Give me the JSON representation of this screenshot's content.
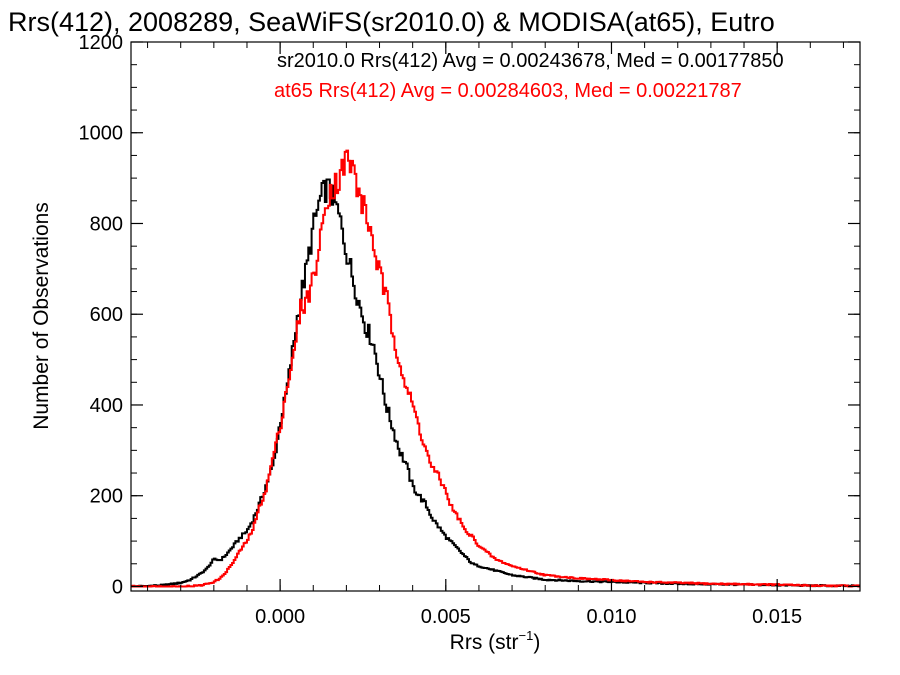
{
  "chart_data": {
    "type": "line",
    "title": "Rrs(412), 2008289, SeaWiFS(sr2010.0) & MODISA(at65), Eutro",
    "xlabel_base": "Rrs (str",
    "xlabel_sup": "−1",
    "xlabel_close": ")",
    "ylabel": "Number of Observations",
    "xlim": [
      -0.0045,
      0.0175
    ],
    "ylim": [
      -10,
      1200
    ],
    "xticks": [
      0.0,
      0.005,
      0.01,
      0.015
    ],
    "xtick_labels": [
      "0.000",
      "0.005",
      "0.010",
      "0.015"
    ],
    "yticks": [
      0,
      200,
      400,
      600,
      800,
      1000,
      1200
    ],
    "ytick_labels": [
      "0",
      "200",
      "400",
      "600",
      "800",
      "1000",
      "1200"
    ],
    "grid": false,
    "legend_placement": "top-right",
    "series": [
      {
        "name": "sr2010.0 Rrs(412) Avg = 0.00243678, Med = 0.00177850",
        "color": "#000000",
        "x": [
          -0.0045,
          -0.004,
          -0.0035,
          -0.003,
          -0.0027,
          -0.0024,
          -0.0022,
          -0.002,
          -0.0018,
          -0.0016,
          -0.0014,
          -0.0012,
          -0.001,
          -0.0008,
          -0.0006,
          -0.0004,
          -0.0002,
          0.0,
          0.0002,
          0.0004,
          0.0006,
          0.0008,
          0.001,
          0.0012,
          0.0014,
          0.0016,
          0.0018,
          0.002,
          0.0022,
          0.0024,
          0.0026,
          0.0028,
          0.003,
          0.0032,
          0.0034,
          0.0036,
          0.0038,
          0.004,
          0.0042,
          0.0044,
          0.0046,
          0.0048,
          0.005,
          0.0052,
          0.0054,
          0.0056,
          0.0058,
          0.006,
          0.0065,
          0.007,
          0.0075,
          0.008,
          0.009,
          0.01,
          0.011,
          0.012,
          0.013,
          0.014,
          0.015,
          0.016,
          0.0175
        ],
        "y": [
          0,
          1,
          3,
          8,
          15,
          28,
          40,
          60,
          58,
          72,
          90,
          108,
          122,
          150,
          185,
          228,
          270,
          360,
          430,
          530,
          630,
          700,
          790,
          850,
          880,
          860,
          810,
          740,
          680,
          620,
          570,
          540,
          470,
          400,
          350,
          300,
          270,
          220,
          200,
          180,
          150,
          130,
          110,
          95,
          80,
          65,
          50,
          45,
          35,
          25,
          20,
          15,
          12,
          10,
          8,
          6,
          5,
          4,
          3,
          2,
          1
        ]
      },
      {
        "name": "at65 Rrs(412) Avg = 0.00284603, Med = 0.00221787",
        "color": "#ff0000",
        "x": [
          -0.0045,
          -0.003,
          -0.0024,
          -0.0022,
          -0.002,
          -0.0018,
          -0.0016,
          -0.0014,
          -0.0012,
          -0.001,
          -0.0008,
          -0.0006,
          -0.0004,
          -0.0002,
          0.0,
          0.0002,
          0.0004,
          0.0006,
          0.0008,
          0.001,
          0.0012,
          0.0014,
          0.0016,
          0.0018,
          0.002,
          0.0022,
          0.0024,
          0.0026,
          0.0028,
          0.003,
          0.0032,
          0.0034,
          0.0036,
          0.0038,
          0.004,
          0.0042,
          0.0044,
          0.0046,
          0.0048,
          0.005,
          0.0052,
          0.0054,
          0.0056,
          0.0058,
          0.006,
          0.0065,
          0.007,
          0.0075,
          0.008,
          0.009,
          0.01,
          0.011,
          0.012,
          0.013,
          0.014,
          0.015,
          0.016,
          0.0175
        ],
        "y": [
          0,
          0,
          2,
          6,
          10,
          18,
          35,
          55,
          80,
          100,
          130,
          180,
          220,
          290,
          350,
          440,
          500,
          610,
          630,
          680,
          750,
          860,
          880,
          900,
          945,
          920,
          860,
          820,
          760,
          690,
          640,
          560,
          500,
          440,
          400,
          350,
          300,
          260,
          240,
          210,
          170,
          150,
          120,
          110,
          90,
          60,
          45,
          35,
          25,
          18,
          14,
          10,
          8,
          6,
          5,
          4,
          2,
          1
        ]
      }
    ]
  }
}
